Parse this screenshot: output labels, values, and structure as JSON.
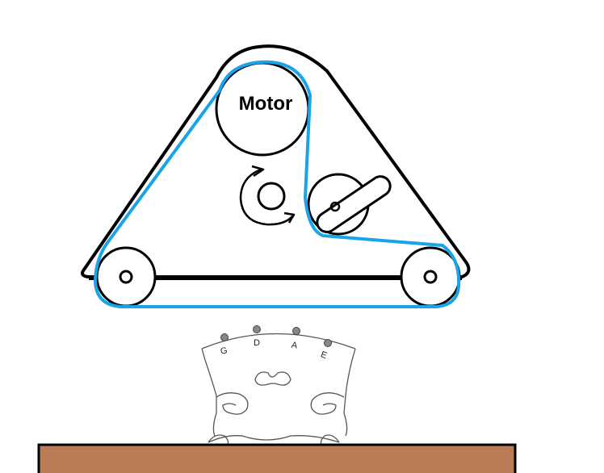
{
  "diagram": {
    "motor": {
      "label": "Motor"
    },
    "strings": [
      {
        "label": "G"
      },
      {
        "label": "D"
      },
      {
        "label": "A"
      },
      {
        "label": "E"
      }
    ],
    "colors": {
      "belt": "#1aa3e8",
      "frame": "#000000",
      "bridge": "#555555",
      "string_peg": "#888888",
      "base": "#b97c57"
    }
  }
}
